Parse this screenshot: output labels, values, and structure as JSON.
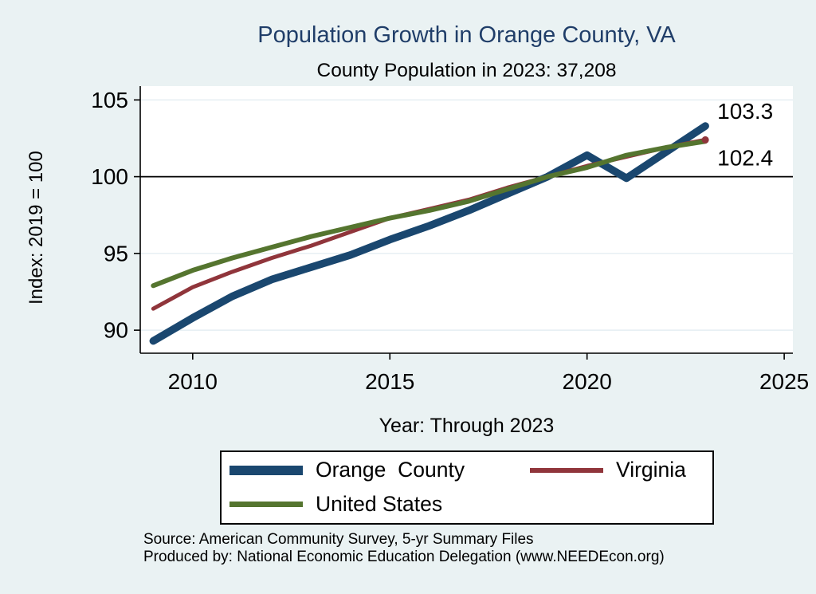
{
  "colors": {
    "background": "#eaf2f3",
    "plot_background": "#ffffff",
    "grid": "#e4eef2",
    "axis": "#000000",
    "reference_line": "#000000",
    "title": "#203e69",
    "navy": "#1a476f",
    "maroon": "#90353b",
    "olive": "#55752f",
    "legend_border": "#000000"
  },
  "chart_data": {
    "type": "line",
    "title": "Population Growth in Orange County, VA",
    "subtitle": "County Population in 2023: 37,208",
    "xlabel": "Year: Through 2023",
    "ylabel": "Index: 2019 = 100",
    "x": [
      2009,
      2010,
      2011,
      2012,
      2013,
      2014,
      2015,
      2016,
      2017,
      2018,
      2019,
      2020,
      2021,
      2022,
      2023
    ],
    "series": [
      {
        "name": "Orange  County",
        "color": "#1a476f",
        "line_width": 9.5,
        "values": [
          89.3,
          90.8,
          92.2,
          93.3,
          94.1,
          94.9,
          95.9,
          96.8,
          97.8,
          98.9,
          100.0,
          101.4,
          99.9,
          101.6,
          103.3
        ],
        "end_label": "103.3",
        "end_label_dy": -19,
        "end_marker": false
      },
      {
        "name": "Virginia",
        "color": "#90353b",
        "line_width": 5,
        "values": [
          91.4,
          92.8,
          93.8,
          94.7,
          95.5,
          96.4,
          97.3,
          97.9,
          98.5,
          99.3,
          100.0,
          100.7,
          101.3,
          101.9,
          102.4
        ],
        "end_label": "102.4",
        "end_label_dy": 22,
        "end_marker": true
      },
      {
        "name": "United States",
        "color": "#55752f",
        "line_width": 6,
        "values": [
          92.9,
          93.9,
          94.7,
          95.4,
          96.1,
          96.7,
          97.3,
          97.8,
          98.4,
          99.2,
          100.0,
          100.6,
          101.4,
          101.9,
          102.3
        ],
        "end_label": "",
        "end_label_dy": 0,
        "end_marker": false
      }
    ],
    "xticks": [
      2010,
      2015,
      2020,
      2025
    ],
    "yticks": [
      90,
      95,
      100,
      105
    ],
    "xlim": [
      2008.67,
      2025.22
    ],
    "ylim": [
      88.5,
      105.9
    ],
    "ref_line": 100,
    "grid": true,
    "legend_position": "bottom"
  },
  "footer": {
    "source": "Source: American Community Survey, 5-yr Summary Files",
    "produced_by": "Produced by: National Economic Education Delegation (www.NEEDEcon.org)"
  }
}
